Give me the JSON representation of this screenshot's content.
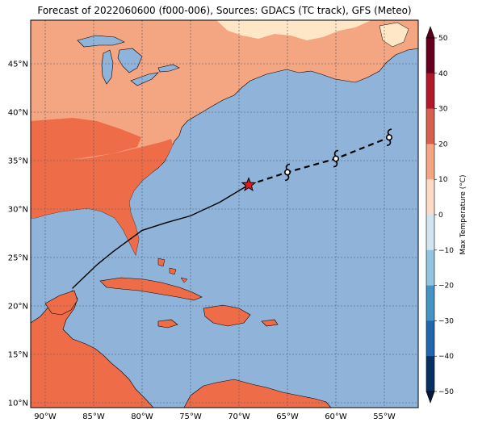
{
  "title": "Forecast of 2022060600 (f000-006), Sources: GDACS (TC track), GFS (Meteo)",
  "lat_ticks": [
    "45°N",
    "40°N",
    "35°N",
    "30°N",
    "25°N",
    "20°N",
    "15°N",
    "10°N"
  ],
  "lon_ticks": [
    "90°W",
    "85°W",
    "80°W",
    "75°W",
    "70°W",
    "65°W",
    "60°W",
    "55°W"
  ],
  "colorbar": {
    "label": "Max Temperature (°C)",
    "ticks": [
      "50",
      "40",
      "30",
      "20",
      "10",
      "0",
      "−10",
      "−20",
      "−30",
      "−40",
      "−50"
    ],
    "colors": [
      "#67001f",
      "#b2182b",
      "#d6604d",
      "#f4a582",
      "#fddbc7",
      "#d1e5f0",
      "#92c5de",
      "#4393c3",
      "#2166ac",
      "#053061"
    ]
  },
  "colors": {
    "ocean": "#8fb3d9",
    "land_warm": "#f4a582",
    "land_hot": "#ef6c48",
    "land_mild": "#fde7c6",
    "track_past": "#000000",
    "storm_marker": "#e31a1c"
  },
  "map": {
    "lon_range": [
      -91.5,
      -51.5
    ],
    "lat_range": [
      9.5,
      49.5
    ],
    "current_position": {
      "lon": -69.0,
      "lat": 32.5
    },
    "past_track": [
      [
        -87.2,
        21.8
      ],
      [
        -86.8,
        22.2
      ],
      [
        -84.6,
        24.3
      ],
      [
        -83.0,
        25.6
      ],
      [
        -81.5,
        26.7
      ],
      [
        -80.0,
        27.8
      ],
      [
        -77.5,
        28.6
      ],
      [
        -75.0,
        29.3
      ],
      [
        -72.0,
        30.7
      ],
      [
        -69.0,
        32.5
      ]
    ],
    "forecast_track": [
      [
        -69.0,
        32.5
      ],
      [
        -65.0,
        33.8
      ],
      [
        -60.0,
        35.2
      ],
      [
        -54.5,
        37.4
      ]
    ],
    "forecast_points": [
      [
        -65.0,
        33.8
      ],
      [
        -60.0,
        35.2
      ],
      [
        -54.5,
        37.4
      ]
    ]
  }
}
